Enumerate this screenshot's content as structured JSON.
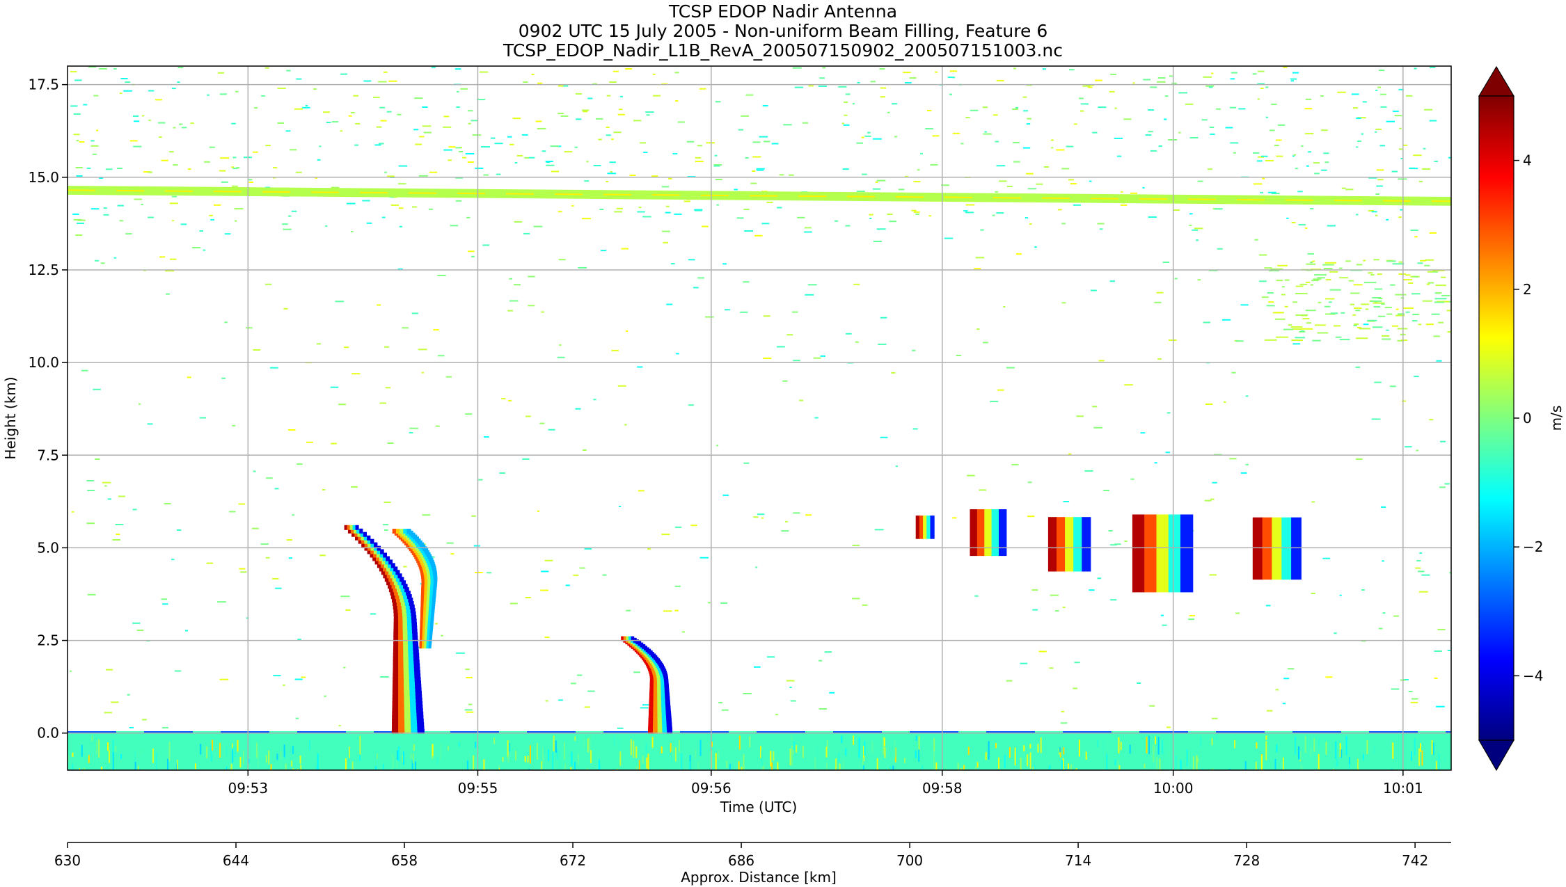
{
  "chart_data": {
    "type": "heatmap",
    "title_lines": [
      "TCSP EDOP Nadir Antenna",
      "0902 UTC 15 July 2005 - Non-uniform Beam Filling, Feature 6",
      "TCSP_EDOP_Nadir_L1B_RevA_200507150902_200507151003.nc"
    ],
    "xlabel": "Time (UTC)",
    "ylabel": "Height (km)",
    "x2label": "Approx. Distance [km]",
    "colorbar_label": "m/s",
    "colormap": "jet",
    "grid": true,
    "ylim": [
      -1.0,
      18.0
    ],
    "xlim_distance_km": [
      630,
      745
    ],
    "clim": [
      -5,
      5
    ],
    "y_ticks": [
      "17.5",
      "15.0",
      "12.5",
      "10.0",
      "7.5",
      "5.0",
      "2.5",
      "0.0"
    ],
    "y_tick_values": [
      17.5,
      15.0,
      12.5,
      10.0,
      7.5,
      5.0,
      2.5,
      0.0
    ],
    "x_ticks": [
      "09:53",
      "09:55",
      "09:56",
      "09:58",
      "10:00",
      "10:01"
    ],
    "x_tick_distance_km": [
      645.0,
      664.1,
      683.5,
      702.7,
      721.9,
      741.0
    ],
    "x2_ticks": [
      "630",
      "644",
      "658",
      "672",
      "686",
      "700",
      "714",
      "728",
      "742"
    ],
    "x2_tick_values": [
      630,
      644,
      658,
      672,
      686,
      700,
      714,
      728,
      742
    ],
    "cbar_ticks": [
      "4",
      "2",
      "0",
      "−2",
      "−4"
    ],
    "cbar_tick_values": [
      4,
      2,
      0,
      -2,
      -4
    ],
    "features": [
      {
        "name": "tropopause-echo-band",
        "distance_km": [
          630,
          745
        ],
        "height_km": [
          14.65,
          14.35
        ],
        "velocity_ms": 0.5
      },
      {
        "name": "surface-echo",
        "distance_km": [
          630,
          745
        ],
        "height_km": [
          -1.0,
          0.05
        ],
        "velocity_ms": 0.0
      },
      {
        "name": "fall-streak-1",
        "distance_km": [
          653,
          658
        ],
        "height_km": [
          0.0,
          5.5
        ],
        "velocity_ms": [
          4.5,
          -4.0
        ]
      },
      {
        "name": "fall-streak-2",
        "distance_km": [
          657,
          660
        ],
        "height_km": [
          2.3,
          5.4
        ],
        "velocity_ms": [
          3.0,
          -2.0
        ]
      },
      {
        "name": "fall-streak-3",
        "distance_km": [
          676,
          679
        ],
        "height_km": [
          0.0,
          2.5
        ],
        "velocity_ms": [
          4.0,
          -4.0
        ]
      },
      {
        "name": "cirrus-patches",
        "distance_km": [
          729,
          745
        ],
        "height_km": [
          10.6,
          12.8
        ],
        "velocity_ms": 0.3
      },
      {
        "name": "mid-level-cells",
        "distance_km": [
          700,
          731
        ],
        "height_km": [
          3.8,
          6.0
        ],
        "velocity_ms": [
          4.5,
          -3.5
        ]
      }
    ]
  }
}
